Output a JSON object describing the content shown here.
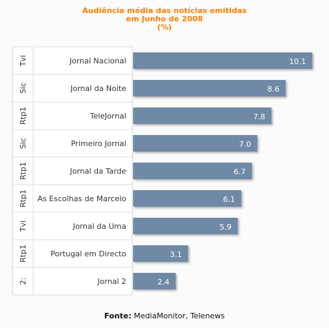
{
  "chart_data": {
    "type": "bar",
    "orientation": "horizontal",
    "title_lines": [
      "Audiência média das notícias emitidas",
      "em Junho de 2008",
      "(%)"
    ],
    "categories": [
      "Jornal Nacional",
      "Jornal da Noite",
      "TeleJornal",
      "Primeiro Jornal",
      "Jornal da Tarde",
      "As Escolhas de Marcelo",
      "Jornal da Uma",
      "Portugal em Directo",
      "Jornal 2"
    ],
    "channels": [
      "Tvi",
      "Sic",
      "Rtp1",
      "Sic",
      "Rtp1",
      "Rtp1",
      "Tvi",
      "Rtp1",
      "2:"
    ],
    "values": [
      10.1,
      8.6,
      7.8,
      7.0,
      6.7,
      6.1,
      5.9,
      3.1,
      2.4
    ],
    "value_labels": [
      "10.1",
      "8.6",
      "7.8",
      "7.0",
      "6.7",
      "6.1",
      "5.9",
      "3.1",
      "2.4"
    ],
    "xlim": [
      0,
      10.5
    ],
    "bar_color": "#7089a6",
    "title_color": "#ff7f00",
    "source_label": "Fonte:",
    "source_text": "MediaMonitor, Telenews"
  }
}
